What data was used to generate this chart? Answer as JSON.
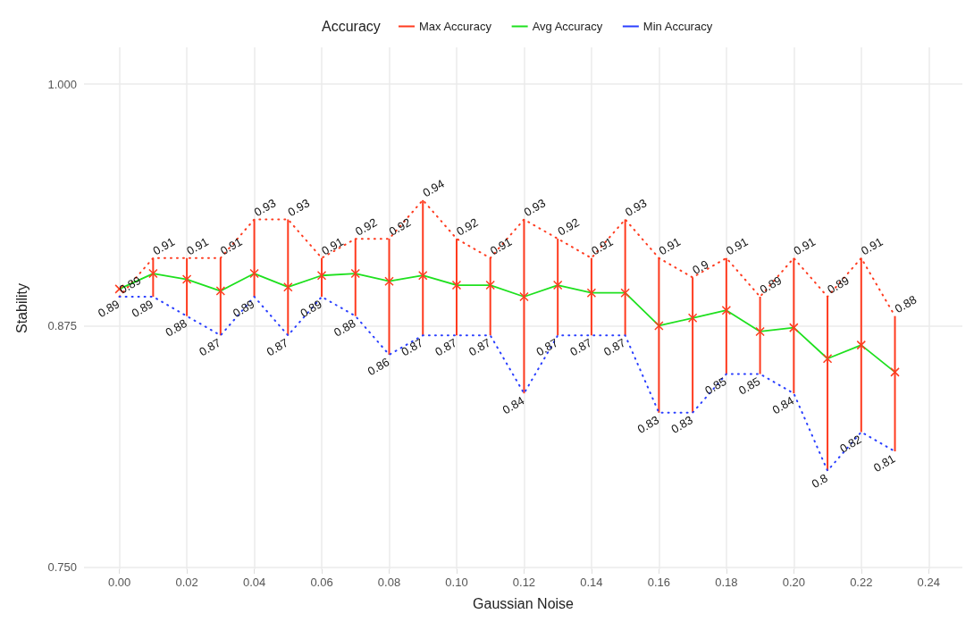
{
  "chart_data": {
    "type": "line",
    "xlabel": "Gaussian Noise",
    "ylabel": "Stability",
    "legend_title": "Accuracy",
    "legend": "top",
    "grid": true,
    "x": [
      0,
      0.01,
      0.02,
      0.03,
      0.04,
      0.05,
      0.06,
      0.07,
      0.08,
      0.09,
      0.1,
      0.11,
      0.12,
      0.13,
      0.14,
      0.15,
      0.16,
      0.17,
      0.18,
      0.19,
      0.2,
      0.21,
      0.22,
      0.23
    ],
    "xlim": [
      -0.0105,
      0.25
    ],
    "xticks": [
      {
        "value": 0,
        "label": "0.00"
      },
      {
        "value": 0.02,
        "label": "0.02"
      },
      {
        "value": 0.04,
        "label": "0.04"
      },
      {
        "value": 0.06,
        "label": "0.06"
      },
      {
        "value": 0.08,
        "label": "0.08"
      },
      {
        "value": 0.1,
        "label": "0.10"
      },
      {
        "value": 0.12,
        "label": "0.12"
      },
      {
        "value": 0.14,
        "label": "0.14"
      },
      {
        "value": 0.16,
        "label": "0.16"
      },
      {
        "value": 0.18,
        "label": "0.18"
      },
      {
        "value": 0.2,
        "label": "0.20"
      },
      {
        "value": 0.22,
        "label": "0.22"
      },
      {
        "value": 0.24,
        "label": "0.24"
      }
    ],
    "ylim": [
      0.749,
      1.019
    ],
    "yticks": [
      {
        "value": 0.75,
        "label": "0.750"
      },
      {
        "value": 0.875,
        "label": "0.875"
      },
      {
        "value": 1,
        "label": "1.000"
      }
    ],
    "series": [
      {
        "name": "Max Accuracy",
        "color": "#ff3b1f",
        "line_style": "dotted",
        "data_labels": true,
        "values": [
          0.89,
          0.91,
          0.91,
          0.91,
          0.93,
          0.93,
          0.91,
          0.92,
          0.92,
          0.94,
          0.92,
          0.91,
          0.93,
          0.92,
          0.91,
          0.93,
          0.91,
          0.9,
          0.91,
          0.89,
          0.91,
          0.89,
          0.91,
          0.88
        ]
      },
      {
        "name": "Avg Accuracy",
        "color": "#1ee01e",
        "line_style": "solid",
        "marker": "cross",
        "errors": [
          [
            0.89,
            0.89
          ],
          [
            0.89,
            0.91
          ],
          [
            0.88,
            0.91
          ],
          [
            0.87,
            0.91
          ],
          [
            0.89,
            0.93
          ],
          [
            0.87,
            0.93
          ],
          [
            0.89,
            0.91
          ],
          [
            0.88,
            0.92
          ],
          [
            0.86,
            0.92
          ],
          [
            0.87,
            0.94
          ],
          [
            0.87,
            0.92
          ],
          [
            0.87,
            0.91
          ],
          [
            0.84,
            0.93
          ],
          [
            0.87,
            0.92
          ],
          [
            0.87,
            0.91
          ],
          [
            0.87,
            0.93
          ],
          [
            0.83,
            0.91
          ],
          [
            0.83,
            0.9
          ],
          [
            0.85,
            0.91
          ],
          [
            0.85,
            0.89
          ],
          [
            0.84,
            0.91
          ],
          [
            0.8,
            0.89
          ],
          [
            0.82,
            0.91
          ],
          [
            0.81,
            0.88
          ]
        ],
        "values": [
          0.894,
          0.902,
          0.899,
          0.893,
          0.902,
          0.895,
          0.901,
          0.902,
          0.898,
          0.901,
          0.896,
          0.896,
          0.89,
          0.896,
          0.892,
          0.892,
          0.875,
          0.879,
          0.883,
          0.872,
          0.874,
          0.858,
          0.865,
          0.851
        ]
      },
      {
        "name": "Min Accuracy",
        "color": "#2a3fff",
        "line_style": "dotted",
        "data_labels": true,
        "values": [
          0.89,
          0.89,
          0.88,
          0.87,
          0.89,
          0.87,
          0.89,
          0.88,
          0.86,
          0.87,
          0.87,
          0.87,
          0.84,
          0.87,
          0.87,
          0.87,
          0.83,
          0.83,
          0.85,
          0.85,
          0.84,
          0.8,
          0.82,
          0.81
        ]
      }
    ]
  }
}
